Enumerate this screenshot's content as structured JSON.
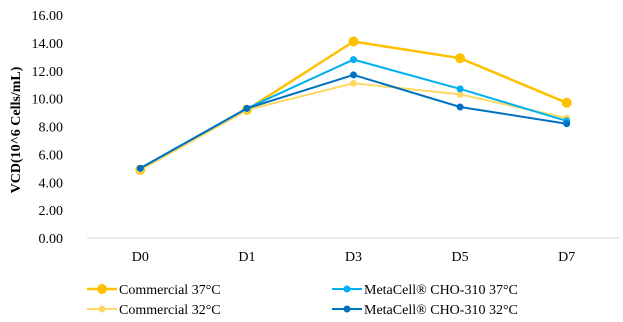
{
  "chart_data": {
    "type": "line",
    "title": "",
    "xlabel": "",
    "ylabel": "VCD(10^6 Cells/mL)",
    "categories": [
      "D0",
      "D1",
      "D3",
      "D5",
      "D7"
    ],
    "ylim": [
      0,
      16
    ],
    "yticks": [
      "0.00",
      "2.00",
      "4.00",
      "6.00",
      "8.00",
      "10.00",
      "12.00",
      "14.00",
      "16.00"
    ],
    "grid": false,
    "legend_position": "bottom",
    "series": [
      {
        "name": "Commercial 37°C",
        "color": "#FFC000",
        "values": [
          4.9,
          9.2,
          14.1,
          12.9,
          9.7
        ]
      },
      {
        "name": "Commercial 32°C",
        "color": "#FFD966",
        "values": [
          4.9,
          9.2,
          11.1,
          10.3,
          8.6
        ]
      },
      {
        "name": "MetaCell® CHO-310 37°C",
        "color": "#00B0F0",
        "values": [
          5.0,
          9.3,
          12.8,
          10.7,
          8.4
        ]
      },
      {
        "name": "MetaCell® CHO-310 32°C",
        "color": "#0070C0",
        "values": [
          5.0,
          9.3,
          11.7,
          9.4,
          8.2
        ]
      }
    ]
  }
}
